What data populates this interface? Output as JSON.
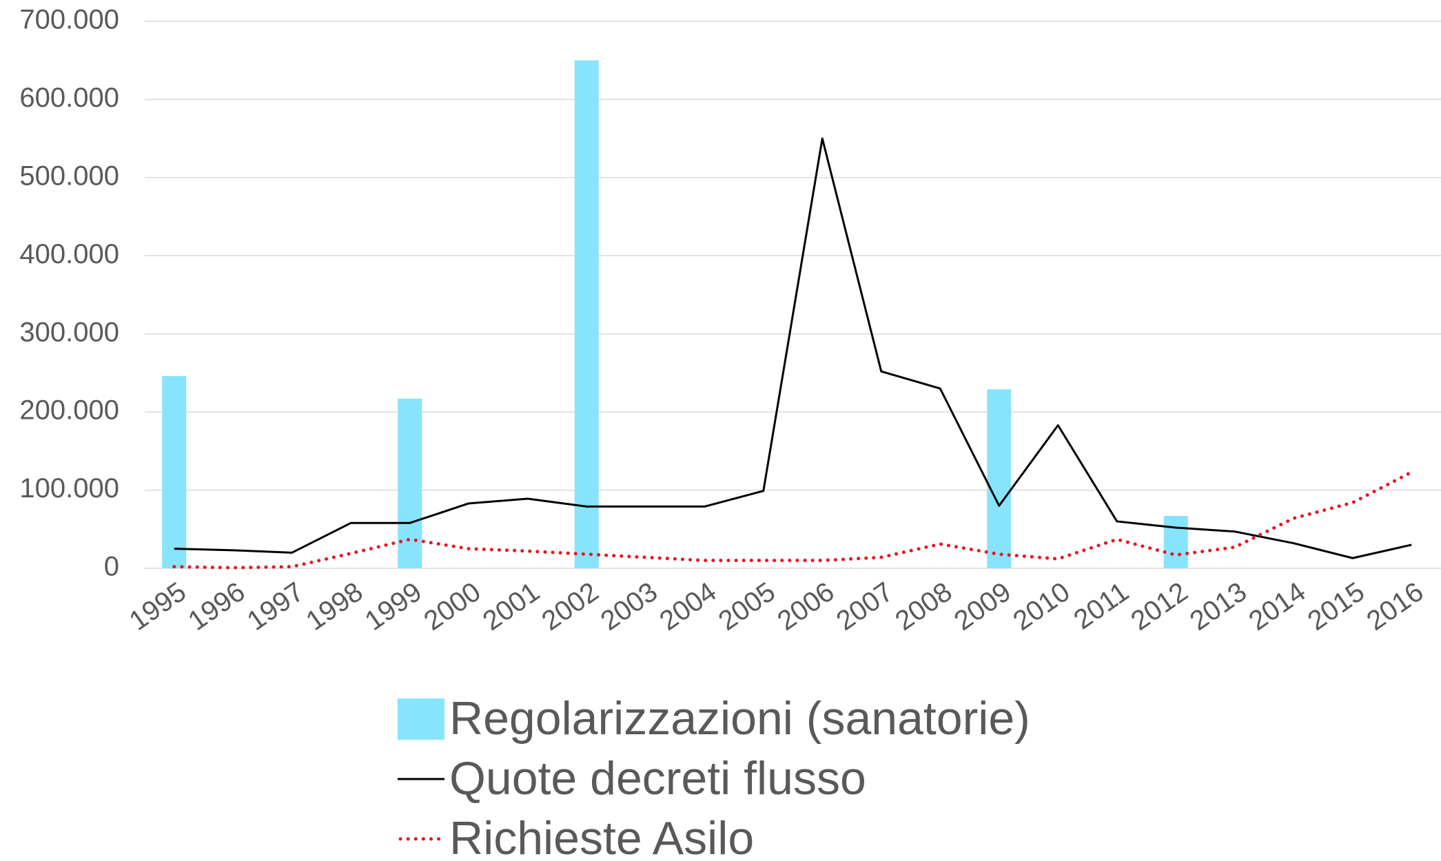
{
  "chart_data": {
    "type": "combo",
    "categories": [
      "1995",
      "1996",
      "1997",
      "1998",
      "1999",
      "2000",
      "2001",
      "2002",
      "2003",
      "2004",
      "2005",
      "2006",
      "2007",
      "2008",
      "2009",
      "2010",
      "2011",
      "2012",
      "2013",
      "2014",
      "2015",
      "2016"
    ],
    "series": [
      {
        "name": "Regolarizzazioni (sanatorie)",
        "type": "bar",
        "color": "#87e4fc",
        "values": [
          246000,
          null,
          null,
          null,
          217000,
          null,
          null,
          650000,
          null,
          null,
          null,
          null,
          null,
          null,
          229000,
          null,
          null,
          67000,
          null,
          null,
          null,
          null
        ]
      },
      {
        "name": "Quote decreti flusso",
        "type": "line",
        "color": "#000000",
        "dash": "solid",
        "values": [
          25000,
          23000,
          20000,
          58000,
          58000,
          83000,
          89000,
          79000,
          79000,
          79000,
          99000,
          550000,
          252000,
          230000,
          80000,
          183000,
          60000,
          52000,
          47000,
          32000,
          13000,
          30000
        ]
      },
      {
        "name": "Richieste Asilo",
        "type": "line",
        "color": "#e8141e",
        "dash": "dotted",
        "values": [
          2000,
          700,
          2000,
          19000,
          37000,
          25000,
          22000,
          18000,
          14000,
          10000,
          10000,
          10000,
          14000,
          31000,
          18000,
          12000,
          37000,
          17000,
          27000,
          64000,
          84000,
          123000
        ]
      }
    ],
    "ylim": [
      0,
      700000
    ],
    "yticks": [
      0,
      {
        "value": 100000,
        "label": "100.000"
      },
      {
        "value": 200000,
        "label": "200.000"
      },
      {
        "value": 300000,
        "label": "300.000"
      },
      {
        "value": 400000,
        "label": "400.000"
      },
      {
        "value": 500000,
        "label": "500.000"
      },
      {
        "value": 600000,
        "label": "600.000"
      },
      {
        "value": 700000,
        "label": "700.000"
      }
    ],
    "grid": true,
    "legend": "bottom"
  }
}
